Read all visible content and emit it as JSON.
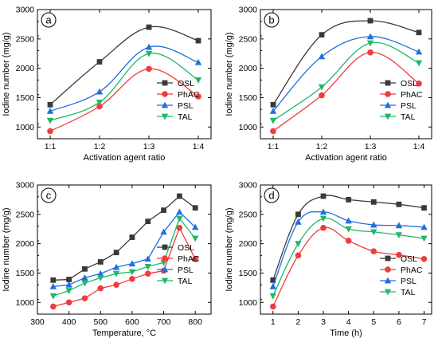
{
  "colors": {
    "OSL": "#3a3a3a",
    "PhAC": "#f03c3c",
    "PSL": "#1f6fe0",
    "TAL": "#1fb86a"
  },
  "chart_data": [
    {
      "panel": "a",
      "type": "line",
      "smooth": true,
      "categories": [
        "1:1",
        "1:2",
        "1:3",
        "1:4"
      ],
      "xlabel": "Activation agent ratio",
      "ylabel": "Iodine number (mg/g)",
      "ylim": [
        800,
        3000
      ],
      "yticks": [
        1000,
        1500,
        2000,
        2500,
        3000
      ],
      "legend": "bottom-right",
      "series": [
        {
          "name": "OSL",
          "marker": "square",
          "values": [
            1380,
            2110,
            2700,
            2470
          ]
        },
        {
          "name": "PhAC",
          "marker": "circle",
          "values": [
            930,
            1350,
            1990,
            1520
          ]
        },
        {
          "name": "PSL",
          "marker": "triangle-up",
          "values": [
            1270,
            1600,
            2360,
            2100
          ]
        },
        {
          "name": "TAL",
          "marker": "triangle-down",
          "values": [
            1110,
            1420,
            2250,
            1800
          ]
        }
      ]
    },
    {
      "panel": "b",
      "type": "line",
      "smooth": true,
      "categories": [
        "1:1",
        "1:2",
        "1:3",
        "1:4"
      ],
      "xlabel": "Activation agent ratio",
      "ylabel": "Iodine number (mg/g)",
      "ylim": [
        800,
        3000
      ],
      "yticks": [
        1000,
        1500,
        2000,
        2500,
        3000
      ],
      "legend": "bottom-right",
      "series": [
        {
          "name": "OSL",
          "marker": "square",
          "values": [
            1380,
            2570,
            2810,
            2610
          ]
        },
        {
          "name": "PhAC",
          "marker": "circle",
          "values": [
            930,
            1540,
            2270,
            1740
          ]
        },
        {
          "name": "PSL",
          "marker": "triangle-up",
          "values": [
            1270,
            2200,
            2540,
            2280
          ]
        },
        {
          "name": "TAL",
          "marker": "triangle-down",
          "values": [
            1110,
            1680,
            2430,
            2090
          ]
        }
      ]
    },
    {
      "panel": "c",
      "type": "line",
      "smooth": false,
      "x": [
        350,
        400,
        450,
        500,
        550,
        600,
        650,
        700,
        750,
        800
      ],
      "xlim": [
        300,
        850
      ],
      "xticks": [
        300,
        400,
        500,
        600,
        700,
        800
      ],
      "xlabel": "Temperature, °C",
      "ylabel": "Iodine number (mg/g)",
      "ylim": [
        800,
        3000
      ],
      "yticks": [
        1000,
        1500,
        2000,
        2500,
        3000
      ],
      "legend": "center-right",
      "series": [
        {
          "name": "OSL",
          "marker": "square",
          "values": [
            1380,
            1390,
            1570,
            1690,
            1850,
            2110,
            2380,
            2570,
            2810,
            2610
          ]
        },
        {
          "name": "PhAC",
          "marker": "circle",
          "values": [
            930,
            1000,
            1070,
            1240,
            1300,
            1400,
            1490,
            1540,
            2270,
            1740
          ]
        },
        {
          "name": "PSL",
          "marker": "triangle-up",
          "values": [
            1270,
            1300,
            1420,
            1490,
            1600,
            1660,
            1740,
            2200,
            2540,
            2280
          ]
        },
        {
          "name": "TAL",
          "marker": "triangle-down",
          "values": [
            1110,
            1200,
            1330,
            1420,
            1490,
            1520,
            1610,
            1680,
            2430,
            2090
          ]
        }
      ]
    },
    {
      "panel": "d",
      "type": "line",
      "smooth": true,
      "x": [
        1,
        2,
        3,
        4,
        5,
        6,
        7
      ],
      "xlim": [
        0.5,
        7.3
      ],
      "xticks": [
        1,
        2,
        3,
        4,
        5,
        6,
        7
      ],
      "xlabel": "Time (h)",
      "ylabel": "Iodine number (mg/g)",
      "ylim": [
        800,
        3000
      ],
      "yticks": [
        1000,
        1500,
        2000,
        2500,
        3000
      ],
      "legend": "bottom-right",
      "series": [
        {
          "name": "OSL",
          "marker": "square",
          "values": [
            1380,
            2500,
            2810,
            2750,
            2710,
            2670,
            2610
          ]
        },
        {
          "name": "PhAC",
          "marker": "circle",
          "values": [
            930,
            1800,
            2270,
            2050,
            1870,
            1810,
            1740
          ]
        },
        {
          "name": "PSL",
          "marker": "triangle-up",
          "values": [
            1270,
            2370,
            2540,
            2390,
            2320,
            2310,
            2280
          ]
        },
        {
          "name": "TAL",
          "marker": "triangle-down",
          "values": [
            1110,
            2000,
            2430,
            2250,
            2200,
            2150,
            2090
          ]
        }
      ]
    }
  ]
}
